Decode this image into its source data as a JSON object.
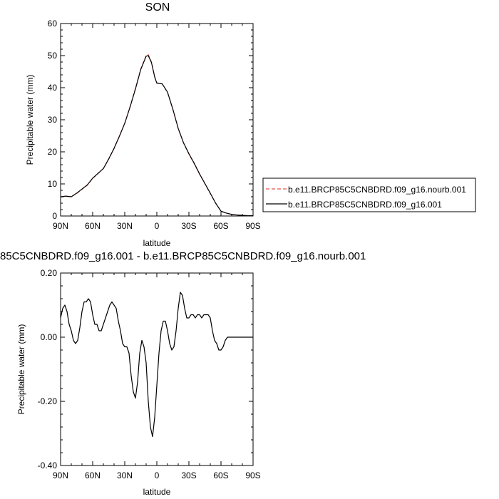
{
  "chart_data": [
    {
      "type": "line",
      "title": "SON",
      "xlabel": "latitude",
      "ylabel": "Precipitable water (mm)",
      "xlim": [
        90,
        -90
      ],
      "ylim": [
        0,
        60
      ],
      "x_ticks": [
        90,
        60,
        30,
        0,
        -30,
        -60,
        -90
      ],
      "x_tick_labels": [
        "90N",
        "60N",
        "30N",
        "0",
        "30S",
        "60S",
        "90S"
      ],
      "y_ticks": [
        0,
        10,
        20,
        30,
        40,
        50,
        60
      ],
      "y_tick_labels": [
        "0",
        "10",
        "20",
        "30",
        "40",
        "50",
        "60"
      ],
      "legend_position": "right",
      "series": [
        {
          "name": "b.e11.BRCP85C5CNBDRD.f09_g16.nourb.001",
          "color": "#e8534a",
          "dash": "dashed",
          "x": [
            90,
            85,
            80,
            75,
            70,
            65,
            60,
            55,
            50,
            45,
            40,
            35,
            30,
            25,
            20,
            15,
            10,
            8,
            5,
            2,
            0,
            -5,
            -10,
            -15,
            -20,
            -25,
            -30,
            -35,
            -40,
            -45,
            -50,
            -55,
            -60,
            -65,
            -70,
            -75,
            -80,
            -85,
            -90
          ],
          "y": [
            5.9,
            6.1,
            6.0,
            7.0,
            8.3,
            9.6,
            11.7,
            13.2,
            14.8,
            17.7,
            21.0,
            24.8,
            28.9,
            34.2,
            39.8,
            45.9,
            50.0,
            50.3,
            48.0,
            43.5,
            41.5,
            41.2,
            38.5,
            33.2,
            27.2,
            22.7,
            19.3,
            16.3,
            13.0,
            10.0,
            7.0,
            4.0,
            1.5,
            0.9,
            0.5,
            0.3,
            0.2,
            0.1,
            0.1
          ]
        },
        {
          "name": "b.e11.BRCP85C5CNBDRD.f09_g16.001",
          "color": "#000000",
          "dash": "solid",
          "x": [
            90,
            85,
            80,
            75,
            70,
            65,
            60,
            55,
            50,
            45,
            40,
            35,
            30,
            25,
            20,
            15,
            10,
            8,
            5,
            2,
            0,
            -5,
            -10,
            -15,
            -20,
            -25,
            -30,
            -35,
            -40,
            -45,
            -50,
            -55,
            -60,
            -65,
            -70,
            -75,
            -80,
            -85,
            -90
          ],
          "y": [
            6.0,
            6.2,
            6.0,
            7.1,
            8.4,
            9.7,
            11.8,
            13.3,
            14.8,
            17.8,
            21.1,
            24.9,
            28.9,
            34.0,
            39.6,
            45.7,
            49.8,
            50.0,
            47.8,
            43.3,
            41.4,
            41.2,
            38.6,
            33.3,
            27.3,
            22.8,
            19.4,
            16.4,
            13.1,
            10.1,
            7.1,
            4.0,
            1.5,
            0.9,
            0.5,
            0.3,
            0.2,
            0.1,
            0.1
          ]
        }
      ]
    },
    {
      "type": "line",
      "title": "85C5CNBDRD.f09_g16.001 - b.e11.BRCP85C5CNBDRD.f09_g16.nourb.001",
      "xlabel": "latitude",
      "ylabel": "Precipitable water (mm)",
      "xlim": [
        90,
        -90
      ],
      "ylim": [
        -0.4,
        0.2
      ],
      "x_ticks": [
        90,
        60,
        30,
        0,
        -30,
        -60,
        -90
      ],
      "x_tick_labels": [
        "90N",
        "60N",
        "30N",
        "0",
        "30S",
        "60S",
        "90S"
      ],
      "y_ticks": [
        0.2,
        0.0,
        -0.2,
        -0.4
      ],
      "y_tick_labels": [
        "0.20",
        "0.00",
        "-0.20",
        "-0.40"
      ],
      "series": [
        {
          "color": "#000000",
          "dash": "solid",
          "x": [
            90,
            88,
            86,
            84,
            82,
            80,
            78,
            76,
            74,
            72,
            70,
            68,
            66,
            64,
            62,
            60,
            58,
            56,
            54,
            52,
            50,
            48,
            46,
            44,
            42,
            40,
            38,
            36,
            34,
            32,
            30,
            28,
            26,
            24,
            22,
            20,
            18,
            16,
            14,
            12,
            10,
            8,
            6,
            4,
            2,
            0,
            -2,
            -4,
            -6,
            -8,
            -10,
            -12,
            -14,
            -16,
            -18,
            -20,
            -22,
            -24,
            -26,
            -28,
            -30,
            -32,
            -34,
            -36,
            -38,
            -40,
            -42,
            -44,
            -46,
            -48,
            -50,
            -52,
            -54,
            -56,
            -58,
            -60,
            -62,
            -64,
            -66,
            -68,
            -70,
            -72,
            -74,
            -76,
            -78,
            -80,
            -82,
            -84,
            -86,
            -88,
            -90
          ],
          "y": [
            0.06,
            0.09,
            0.1,
            0.08,
            0.04,
            0.02,
            -0.01,
            -0.02,
            -0.01,
            0.03,
            0.08,
            0.11,
            0.11,
            0.12,
            0.11,
            0.07,
            0.04,
            0.04,
            0.02,
            0.02,
            0.04,
            0.06,
            0.08,
            0.1,
            0.11,
            0.1,
            0.09,
            0.05,
            0.02,
            -0.02,
            -0.03,
            -0.03,
            -0.05,
            -0.12,
            -0.17,
            -0.19,
            -0.14,
            -0.05,
            -0.01,
            -0.03,
            -0.08,
            -0.2,
            -0.28,
            -0.31,
            -0.25,
            -0.15,
            -0.05,
            0.02,
            0.05,
            0.05,
            0.02,
            -0.02,
            -0.04,
            -0.03,
            0.02,
            0.09,
            0.14,
            0.13,
            0.09,
            0.06,
            0.06,
            0.07,
            0.07,
            0.06,
            0.07,
            0.07,
            0.06,
            0.07,
            0.07,
            0.07,
            0.06,
            0.02,
            -0.01,
            -0.02,
            -0.04,
            -0.04,
            -0.03,
            -0.01,
            0.0,
            0.0,
            0.0,
            0.0,
            0.0,
            0.0,
            0.0,
            0.0,
            0.0,
            0.0,
            0.0,
            0.0,
            0.0
          ]
        }
      ]
    }
  ]
}
